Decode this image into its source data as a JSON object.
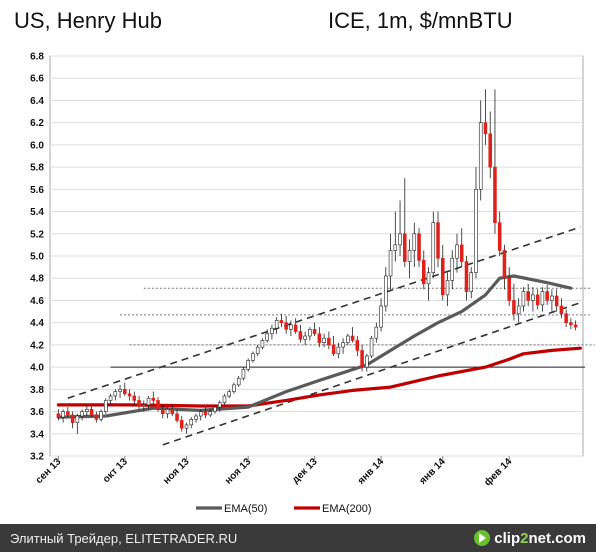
{
  "header": {
    "title_left": "US, Henry Hub",
    "title_right": "ICE, 1m, $/mnBTU"
  },
  "footer": {
    "text": "Элитный Трейдер, ELITETRADER.RU",
    "brand_pre": "clip",
    "brand_num": "2",
    "brand_post": "net",
    "brand_tld": ".com"
  },
  "colors": {
    "up": "#ffffff",
    "down": "#e0201a",
    "ema50": "#5a5a5a",
    "ema200": "#c00000",
    "trend": "#333333",
    "level": "#777777",
    "support": "#222222",
    "grid": "#dddddd",
    "footer_bg": "#3a3a3a",
    "brand_accent": "#6abf2e"
  },
  "chart_data": {
    "type": "candlestick",
    "title": "",
    "ylim": [
      3.2,
      6.8
    ],
    "yticks": [
      "3.2",
      "3.4",
      "3.6",
      "3.8",
      "4.0",
      "4.2",
      "4.4",
      "4.6",
      "4.8",
      "5.0",
      "5.2",
      "5.4",
      "5.6",
      "5.8",
      "6.0",
      "6.2",
      "6.4",
      "6.6",
      "6.8"
    ],
    "xticks": [
      "сен 13",
      "окт 13",
      "ноя 13",
      "ноя 13",
      "дек 13",
      "янв 14",
      "янв 14",
      "фев 14"
    ],
    "xtick_bar_index": [
      0,
      14,
      27,
      40,
      54,
      68,
      81,
      95
    ],
    "bar_count": 110,
    "ohlc": [
      [
        3.58,
        3.62,
        3.52,
        3.55
      ],
      [
        3.55,
        3.62,
        3.5,
        3.6
      ],
      [
        3.6,
        3.64,
        3.55,
        3.57
      ],
      [
        3.57,
        3.6,
        3.45,
        3.5
      ],
      [
        3.5,
        3.58,
        3.4,
        3.56
      ],
      [
        3.56,
        3.62,
        3.52,
        3.6
      ],
      [
        3.6,
        3.66,
        3.56,
        3.62
      ],
      [
        3.62,
        3.66,
        3.55,
        3.57
      ],
      [
        3.57,
        3.6,
        3.5,
        3.53
      ],
      [
        3.53,
        3.62,
        3.51,
        3.6
      ],
      [
        3.6,
        3.72,
        3.58,
        3.7
      ],
      [
        3.7,
        3.76,
        3.66,
        3.74
      ],
      [
        3.74,
        3.8,
        3.7,
        3.78
      ],
      [
        3.78,
        3.84,
        3.72,
        3.8
      ],
      [
        3.8,
        3.86,
        3.74,
        3.76
      ],
      [
        3.76,
        3.8,
        3.7,
        3.74
      ],
      [
        3.74,
        3.78,
        3.66,
        3.7
      ],
      [
        3.7,
        3.74,
        3.62,
        3.65
      ],
      [
        3.65,
        3.7,
        3.6,
        3.66
      ],
      [
        3.66,
        3.74,
        3.62,
        3.72
      ],
      [
        3.72,
        3.78,
        3.66,
        3.7
      ],
      [
        3.7,
        3.73,
        3.6,
        3.62
      ],
      [
        3.62,
        3.66,
        3.54,
        3.58
      ],
      [
        3.58,
        3.64,
        3.54,
        3.62
      ],
      [
        3.62,
        3.66,
        3.56,
        3.58
      ],
      [
        3.58,
        3.62,
        3.5,
        3.52
      ],
      [
        3.52,
        3.56,
        3.42,
        3.45
      ],
      [
        3.45,
        3.5,
        3.4,
        3.48
      ],
      [
        3.48,
        3.55,
        3.45,
        3.53
      ],
      [
        3.53,
        3.58,
        3.5,
        3.56
      ],
      [
        3.56,
        3.62,
        3.52,
        3.6
      ],
      [
        3.6,
        3.64,
        3.54,
        3.57
      ],
      [
        3.57,
        3.62,
        3.55,
        3.6
      ],
      [
        3.6,
        3.66,
        3.58,
        3.64
      ],
      [
        3.64,
        3.7,
        3.6,
        3.68
      ],
      [
        3.68,
        3.76,
        3.66,
        3.74
      ],
      [
        3.74,
        3.8,
        3.72,
        3.78
      ],
      [
        3.78,
        3.86,
        3.76,
        3.84
      ],
      [
        3.84,
        3.92,
        3.82,
        3.9
      ],
      [
        3.9,
        4.0,
        3.88,
        3.98
      ],
      [
        3.98,
        4.08,
        3.96,
        4.06
      ],
      [
        4.06,
        4.14,
        4.04,
        4.12
      ],
      [
        4.12,
        4.2,
        4.1,
        4.18
      ],
      [
        4.18,
        4.26,
        4.16,
        4.24
      ],
      [
        4.24,
        4.34,
        4.22,
        4.3
      ],
      [
        4.3,
        4.38,
        4.25,
        4.35
      ],
      [
        4.35,
        4.45,
        4.3,
        4.42
      ],
      [
        4.42,
        4.48,
        4.36,
        4.4
      ],
      [
        4.4,
        4.46,
        4.3,
        4.34
      ],
      [
        4.34,
        4.42,
        4.28,
        4.38
      ],
      [
        4.38,
        4.44,
        4.3,
        4.32
      ],
      [
        4.32,
        4.38,
        4.22,
        4.25
      ],
      [
        4.25,
        4.32,
        4.2,
        4.28
      ],
      [
        4.28,
        4.36,
        4.24,
        4.34
      ],
      [
        4.34,
        4.4,
        4.28,
        4.3
      ],
      [
        4.3,
        4.36,
        4.18,
        4.22
      ],
      [
        4.22,
        4.3,
        4.18,
        4.26
      ],
      [
        4.26,
        4.32,
        4.16,
        4.2
      ],
      [
        4.2,
        4.28,
        4.1,
        4.12
      ],
      [
        4.12,
        4.22,
        4.08,
        4.18
      ],
      [
        4.18,
        4.26,
        4.12,
        4.22
      ],
      [
        4.22,
        4.3,
        4.2,
        4.28
      ],
      [
        4.28,
        4.36,
        4.22,
        4.24
      ],
      [
        4.24,
        4.28,
        4.1,
        4.15
      ],
      [
        4.15,
        4.2,
        3.96,
        4.0
      ],
      [
        4.0,
        4.12,
        3.96,
        4.1
      ],
      [
        4.1,
        4.28,
        4.08,
        4.26
      ],
      [
        4.26,
        4.4,
        4.22,
        4.36
      ],
      [
        4.36,
        4.62,
        4.32,
        4.55
      ],
      [
        4.55,
        4.9,
        4.5,
        4.82
      ],
      [
        4.82,
        5.2,
        4.7,
        5.05
      ],
      [
        5.05,
        5.4,
        4.95,
        5.1
      ],
      [
        5.1,
        5.5,
        5.0,
        5.2
      ],
      [
        5.2,
        5.7,
        4.9,
        4.95
      ],
      [
        4.95,
        5.15,
        4.8,
        5.05
      ],
      [
        5.05,
        5.3,
        4.9,
        5.2
      ],
      [
        5.2,
        5.25,
        4.9,
        4.96
      ],
      [
        4.96,
        5.05,
        4.7,
        4.75
      ],
      [
        4.75,
        4.9,
        4.6,
        4.85
      ],
      [
        4.85,
        5.4,
        4.8,
        5.3
      ],
      [
        5.3,
        5.4,
        4.9,
        4.98
      ],
      [
        4.98,
        5.1,
        4.6,
        4.65
      ],
      [
        4.65,
        4.85,
        4.55,
        4.78
      ],
      [
        4.78,
        5.05,
        4.7,
        4.98
      ],
      [
        4.98,
        5.2,
        4.85,
        5.1
      ],
      [
        5.1,
        5.25,
        4.9,
        4.95
      ],
      [
        4.95,
        5.0,
        4.6,
        4.68
      ],
      [
        4.68,
        4.9,
        4.62,
        4.85
      ],
      [
        4.85,
        5.8,
        4.8,
        5.6
      ],
      [
        5.6,
        6.4,
        5.5,
        6.2
      ],
      [
        6.2,
        6.5,
        6.0,
        6.1
      ],
      [
        6.1,
        6.3,
        5.7,
        5.8
      ],
      [
        5.8,
        6.5,
        5.2,
        5.3
      ],
      [
        5.3,
        5.4,
        5.0,
        5.05
      ],
      [
        5.05,
        5.1,
        4.7,
        4.8
      ],
      [
        4.8,
        4.9,
        4.55,
        4.6
      ],
      [
        4.6,
        4.75,
        4.42,
        4.48
      ],
      [
        4.48,
        4.62,
        4.4,
        4.55
      ],
      [
        4.55,
        4.72,
        4.5,
        4.68
      ],
      [
        4.68,
        4.75,
        4.55,
        4.6
      ],
      [
        4.6,
        4.72,
        4.5,
        4.65
      ],
      [
        4.65,
        4.7,
        4.52,
        4.56
      ],
      [
        4.56,
        4.72,
        4.5,
        4.68
      ],
      [
        4.68,
        4.74,
        4.56,
        4.6
      ],
      [
        4.6,
        4.7,
        4.5,
        4.64
      ],
      [
        4.64,
        4.7,
        4.5,
        4.55
      ],
      [
        4.55,
        4.62,
        4.44,
        4.48
      ],
      [
        4.48,
        4.52,
        4.36,
        4.4
      ],
      [
        4.4,
        4.44,
        4.34,
        4.38
      ],
      [
        4.38,
        4.42,
        4.33,
        4.36
      ]
    ],
    "ema50": [
      [
        0,
        3.55
      ],
      [
        10,
        3.56
      ],
      [
        20,
        3.63
      ],
      [
        30,
        3.61
      ],
      [
        40,
        3.64
      ],
      [
        48,
        3.78
      ],
      [
        55,
        3.88
      ],
      [
        60,
        3.95
      ],
      [
        65,
        4.02
      ],
      [
        70,
        4.15
      ],
      [
        75,
        4.28
      ],
      [
        80,
        4.4
      ],
      [
        85,
        4.5
      ],
      [
        90,
        4.65
      ],
      [
        93,
        4.8
      ],
      [
        96,
        4.82
      ],
      [
        103,
        4.76
      ],
      [
        108,
        4.71
      ]
    ],
    "ema200": [
      [
        0,
        3.66
      ],
      [
        15,
        3.66
      ],
      [
        30,
        3.65
      ],
      [
        40,
        3.65
      ],
      [
        48,
        3.7
      ],
      [
        55,
        3.75
      ],
      [
        62,
        3.79
      ],
      [
        70,
        3.82
      ],
      [
        80,
        3.92
      ],
      [
        90,
        4.0
      ],
      [
        95,
        4.07
      ],
      [
        98,
        4.12
      ],
      [
        104,
        4.15
      ],
      [
        110,
        4.17
      ]
    ],
    "trendlines": [
      {
        "from": [
          2,
          3.72
        ],
        "to": [
          110,
          5.26
        ]
      },
      {
        "from": [
          22,
          3.3
        ],
        "to": [
          110,
          4.58
        ]
      }
    ],
    "levels": [
      {
        "value": 4.71,
        "from": 18,
        "to": 112
      },
      {
        "value": 4.47,
        "from": 13,
        "to": 112
      },
      {
        "value": 4.2,
        "from": 15,
        "to": 113
      },
      {
        "value": 4.0,
        "from": 11,
        "to": 111
      }
    ],
    "legend": [
      {
        "name": "EMA(50)",
        "color": "#5a5a5a"
      },
      {
        "name": "EMA(200)",
        "color": "#c00000"
      }
    ]
  }
}
